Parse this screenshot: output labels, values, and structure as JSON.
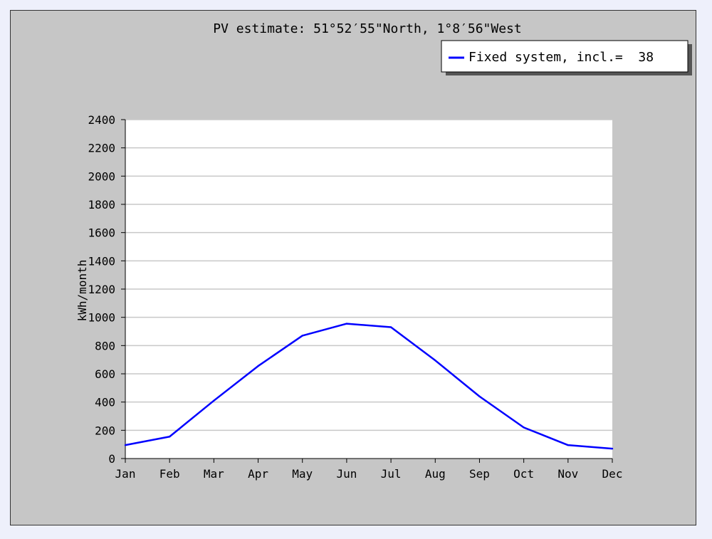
{
  "chart_data": {
    "type": "line",
    "title": "PV estimate:  51°52′55\"North, 1°8′56\"West",
    "xlabel": "",
    "ylabel": "kWh/month",
    "categories": [
      "Jan",
      "Feb",
      "Mar",
      "Apr",
      "May",
      "Jun",
      "Jul",
      "Aug",
      "Sep",
      "Oct",
      "Nov",
      "Dec"
    ],
    "series": [
      {
        "name": "Fixed system, incl.=  38",
        "color": "#0000ff",
        "values": [
          95,
          155,
          410,
          655,
          870,
          955,
          930,
          695,
          440,
          220,
          95,
          70
        ]
      }
    ],
    "ylim": [
      0,
      2400
    ],
    "yticks": [
      0,
      200,
      400,
      600,
      800,
      1000,
      1200,
      1400,
      1600,
      1800,
      2000,
      2200,
      2400
    ],
    "grid": true,
    "legend_position": "top-right"
  },
  "colors": {
    "frame_bg": "#c6c6c6",
    "plot_bg": "#ffffff",
    "grid": "#c8c8c8",
    "line": "#0000ff",
    "page_bg": "#eef0fb"
  }
}
